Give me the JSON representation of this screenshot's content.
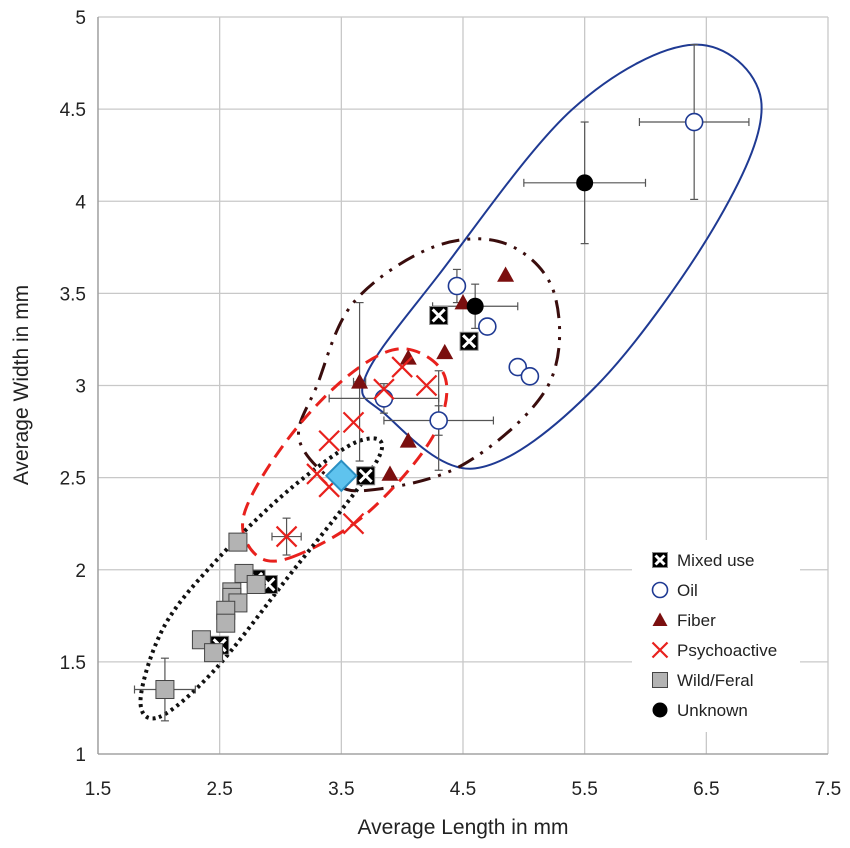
{
  "chart_data": {
    "type": "scatter",
    "title": "",
    "xlabel": "Average Length in mm",
    "ylabel": "Average Width in mm",
    "xlim": [
      1.5,
      7.5
    ],
    "ylim": [
      1,
      5
    ],
    "xticks": [
      1.5,
      2.5,
      3.5,
      4.5,
      5.5,
      6.5,
      7.5
    ],
    "xtick_labels": [
      "1.5",
      "2.5",
      "3.5",
      "4.5",
      "5.5",
      "6.5",
      "7.5"
    ],
    "yticks": [
      1,
      1.5,
      2,
      2.5,
      3,
      3.5,
      4,
      4.5,
      5
    ],
    "ytick_labels": [
      "1",
      "1.5",
      "2",
      "2.5",
      "3",
      "3.5",
      "4",
      "4.5",
      "5"
    ],
    "grid": true,
    "legend_position": "bottom-right",
    "series": [
      {
        "name": "Mixed use",
        "marker": "square-x",
        "color": "#000000",
        "points": [
          [
            2.5,
            1.59
          ],
          [
            2.8,
            1.95
          ],
          [
            2.9,
            1.92
          ],
          [
            3.7,
            2.51
          ],
          [
            4.3,
            3.38
          ],
          [
            4.55,
            3.24
          ]
        ]
      },
      {
        "name": "Oil",
        "marker": "open-circle",
        "color": "#1f3a93",
        "points": [
          [
            6.4,
            4.43
          ],
          [
            4.45,
            3.54
          ],
          [
            4.7,
            3.32
          ],
          [
            4.95,
            3.1
          ],
          [
            5.05,
            3.05
          ],
          [
            3.85,
            2.93
          ],
          [
            4.3,
            2.81
          ]
        ]
      },
      {
        "name": "Fiber",
        "marker": "triangle",
        "color": "#7b0f0f",
        "points": [
          [
            4.85,
            3.6
          ],
          [
            4.5,
            3.45
          ],
          [
            4.35,
            3.18
          ],
          [
            4.05,
            3.15
          ],
          [
            3.65,
            3.02
          ],
          [
            4.05,
            2.7
          ],
          [
            3.9,
            2.52
          ]
        ]
      },
      {
        "name": "Psychoactive",
        "marker": "x",
        "color": "#e8211d",
        "points": [
          [
            4.0,
            3.1
          ],
          [
            3.85,
            2.98
          ],
          [
            4.2,
            3.0
          ],
          [
            3.6,
            2.8
          ],
          [
            3.4,
            2.7
          ],
          [
            3.3,
            2.52
          ],
          [
            3.4,
            2.45
          ],
          [
            3.6,
            2.25
          ],
          [
            3.05,
            2.18
          ]
        ]
      },
      {
        "name": "Wild/Feral",
        "marker": "square",
        "color": "#b3b3b3",
        "points": [
          [
            2.65,
            2.15
          ],
          [
            2.7,
            1.98
          ],
          [
            2.6,
            1.88
          ],
          [
            2.8,
            1.92
          ],
          [
            2.6,
            1.85
          ],
          [
            2.65,
            1.82
          ],
          [
            2.55,
            1.78
          ],
          [
            2.55,
            1.71
          ],
          [
            2.35,
            1.62
          ],
          [
            2.45,
            1.55
          ],
          [
            2.05,
            1.35
          ]
        ]
      },
      {
        "name": "Unknown",
        "marker": "filled-circle",
        "color": "#000000",
        "points": [
          [
            5.5,
            4.1
          ],
          [
            4.6,
            3.43
          ]
        ]
      }
    ],
    "highlight_point": {
      "x": 3.5,
      "y": 2.51,
      "marker": "diamond",
      "color": "#5fc3ee"
    },
    "error_bars": [
      {
        "x": 6.4,
        "y": 4.43,
        "xerr": 0.45,
        "yerr": 0.42
      },
      {
        "x": 5.5,
        "y": 4.1,
        "xerr": 0.5,
        "yerr": 0.33
      },
      {
        "x": 4.6,
        "y": 3.43,
        "xerr": 0.35,
        "yerr": 0.12
      },
      {
        "x": 4.45,
        "y": 3.54,
        "xerr": 0.05,
        "yerr": 0.09
      },
      {
        "x": 3.65,
        "y": 3.02,
        "xerr": 0.05,
        "yerr": 0.43
      },
      {
        "x": 3.85,
        "y": 2.93,
        "xerr": 0.45,
        "yerr": 0.08
      },
      {
        "x": 4.3,
        "y": 2.81,
        "xerr": 0.45,
        "yerr": 0.08
      },
      {
        "x": 4.3,
        "y": 2.81,
        "xerr": 0.05,
        "yerr": 0.27
      },
      {
        "x": 3.05,
        "y": 2.18,
        "xerr": 0.12,
        "yerr": 0.1
      },
      {
        "x": 2.05,
        "y": 1.35,
        "xerr": 0.25,
        "yerr": 0.17
      }
    ],
    "ellipses": [
      {
        "name": "Oil region",
        "color": "#1f3a93",
        "style": "solid",
        "outline": [
          [
            3.85,
            2.85
          ],
          [
            4.6,
            2.55
          ],
          [
            5.6,
            3.0
          ],
          [
            6.6,
            3.9
          ],
          [
            6.95,
            4.55
          ],
          [
            6.4,
            4.85
          ],
          [
            5.4,
            4.5
          ],
          [
            4.3,
            3.6
          ],
          [
            3.7,
            3.05
          ],
          [
            3.85,
            2.85
          ]
        ]
      },
      {
        "name": "Fiber region",
        "color": "#3a0d0d",
        "style": "dash-dot",
        "outline": [
          [
            3.7,
            2.43
          ],
          [
            4.5,
            2.57
          ],
          [
            5.2,
            3.0
          ],
          [
            5.25,
            3.5
          ],
          [
            4.85,
            3.77
          ],
          [
            4.25,
            3.75
          ],
          [
            3.6,
            3.45
          ],
          [
            3.3,
            3.0
          ],
          [
            3.15,
            2.72
          ],
          [
            3.4,
            2.5
          ],
          [
            3.7,
            2.43
          ]
        ]
      },
      {
        "name": "Psychoactive region",
        "color": "#e8211d",
        "style": "dashed",
        "outline": [
          [
            3.1,
            2.07
          ],
          [
            3.7,
            2.3
          ],
          [
            4.25,
            2.72
          ],
          [
            4.35,
            3.05
          ],
          [
            4.0,
            3.2
          ],
          [
            3.55,
            3.05
          ],
          [
            3.05,
            2.7
          ],
          [
            2.7,
            2.3
          ],
          [
            2.8,
            2.08
          ],
          [
            3.1,
            2.07
          ]
        ]
      },
      {
        "name": "Wild/Feral region",
        "color": "#111111",
        "style": "dotted",
        "outline": [
          [
            2.0,
            1.2
          ],
          [
            2.45,
            1.45
          ],
          [
            3.05,
            1.95
          ],
          [
            3.8,
            2.6
          ],
          [
            3.65,
            2.7
          ],
          [
            3.1,
            2.45
          ],
          [
            2.5,
            2.07
          ],
          [
            2.05,
            1.7
          ],
          [
            1.85,
            1.3
          ],
          [
            2.0,
            1.2
          ]
        ]
      }
    ]
  }
}
